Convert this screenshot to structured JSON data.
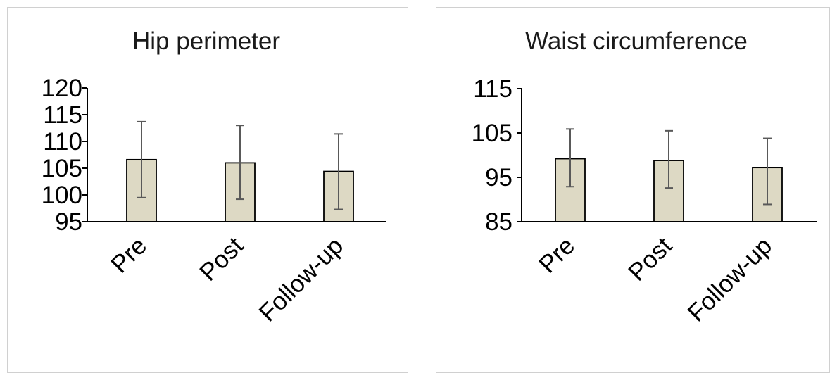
{
  "chart_data": [
    {
      "type": "bar",
      "title": "Hip perimeter",
      "categories": [
        "Pre",
        "Post",
        "Follow-up"
      ],
      "values": [
        106.6,
        106.0,
        104.4
      ],
      "error_low": [
        99.5,
        99.2,
        97.3
      ],
      "error_high": [
        113.7,
        113.0,
        111.4
      ],
      "yticks": [
        "120",
        "115",
        "110",
        "105",
        "100",
        "95"
      ],
      "ylim": [
        95,
        120
      ],
      "grid": false,
      "bar_color": "#ddd9c4",
      "bar_edge_color": "#000000",
      "error_color": "#595959",
      "axis_color": "#000000"
    },
    {
      "type": "bar",
      "title": "Waist circumference",
      "categories": [
        "Pre",
        "Post",
        "Follow-up"
      ],
      "values": [
        99.2,
        98.8,
        97.2
      ],
      "error_low": [
        92.9,
        92.6,
        88.9
      ],
      "error_high": [
        105.9,
        105.5,
        103.8
      ],
      "yticks": [
        "115",
        "105",
        "95",
        "85"
      ],
      "ylim": [
        85,
        115
      ],
      "grid": false,
      "bar_color": "#ddd9c4",
      "bar_edge_color": "#000000",
      "error_color": "#595959",
      "axis_color": "#000000"
    }
  ]
}
